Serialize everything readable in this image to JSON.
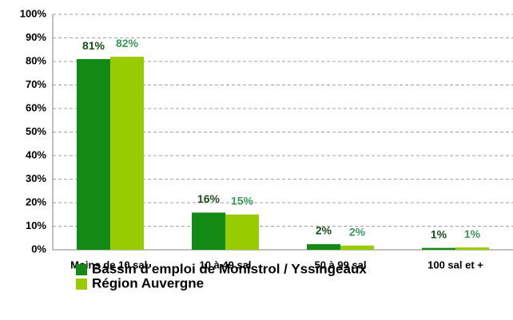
{
  "chart_data": {
    "type": "bar",
    "categories": [
      "Moins de 10 sal.",
      "10 à 49 sal",
      "50 à 99 sal",
      "100 sal et +"
    ],
    "series": [
      {
        "name": "Bassin d'emploi de Monistrol / Yssingeaux",
        "color": "#138a13",
        "values": [
          81,
          15.8,
          2.4,
          0.8
        ],
        "value_labels": [
          "81%",
          "16%",
          "2%",
          "1%"
        ]
      },
      {
        "name": "Région Auvergne",
        "color": "#99cc00",
        "values": [
          82,
          15,
          1.8,
          1
        ],
        "value_labels": [
          "82%",
          "15%",
          "2%",
          "1%"
        ]
      }
    ],
    "ylim": [
      0,
      100
    ],
    "yticks": [
      {
        "value": 0,
        "label": "0%"
      },
      {
        "value": 10,
        "label": "10%"
      },
      {
        "value": 20,
        "label": "20%"
      },
      {
        "value": 30,
        "label": "30%"
      },
      {
        "value": 40,
        "label": "40%"
      },
      {
        "value": 50,
        "label": "50%"
      },
      {
        "value": 60,
        "label": "60%"
      },
      {
        "value": 70,
        "label": "70%"
      },
      {
        "value": 80,
        "label": "80%"
      },
      {
        "value": 90,
        "label": "90%"
      },
      {
        "value": 100,
        "label": "100%"
      }
    ],
    "grid": true
  }
}
